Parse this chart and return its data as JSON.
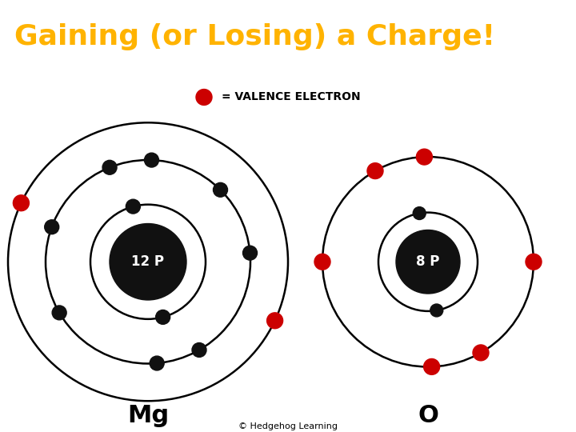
{
  "title": "Gaining (or Losing) a Charge!",
  "title_color": "#FFB300",
  "title_bg": "#000000",
  "legend_text": "= VALENCE ELECTRON",
  "legend_dot_color": "#CC0000",
  "bg_color": "#FFFFFF",
  "copyright": "© Hedgehog Learning",
  "mg_label": "Mg",
  "mg_proton_label": "12 P",
  "o_label": "O",
  "o_proton_label": "8 P",
  "valence_color": "#CC0000",
  "inner_color": "#111111",
  "orbit_lw": 1.8
}
